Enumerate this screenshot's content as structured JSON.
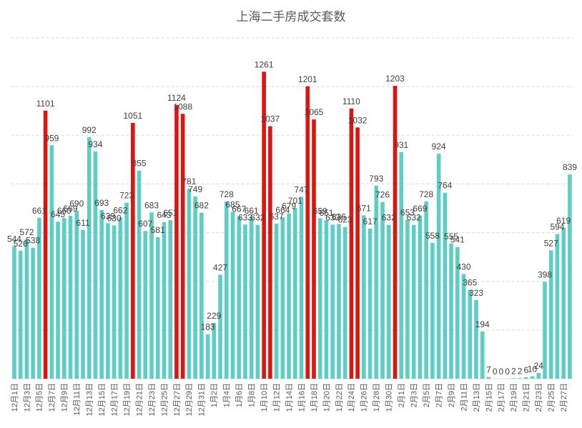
{
  "chart_data": {
    "type": "bar",
    "title": "上海二手房成交套数",
    "xlabel": "",
    "ylabel": "",
    "x_tick_labels": [
      "12月1日",
      "12月3日",
      "12月5日",
      "12月7日",
      "12月9日",
      "12月11日",
      "12月13日",
      "12月15日",
      "12月17日",
      "12月19日",
      "12月21日",
      "12月23日",
      "12月25日",
      "12月27日",
      "12月29日",
      "12月31日",
      "1月2日",
      "1月4日",
      "1月6日",
      "1月8日",
      "1月10日",
      "1月12日",
      "1月14日",
      "1月16日",
      "1月18日",
      "1月20日",
      "1月22日",
      "1月24日",
      "1月26日",
      "1月28日",
      "1月30日",
      "2月1日",
      "2月3日",
      "2月5日",
      "2月7日",
      "2月9日",
      "2月11日",
      "2月13日",
      "2月15日",
      "2月17日",
      "2月19日",
      "2月21日",
      "2月23日",
      "2月25日",
      "2月27日"
    ],
    "values": [
      544,
      526,
      572,
      538,
      661,
      1101,
      959,
      645,
      660,
      669,
      690,
      611,
      992,
      934,
      693,
      639,
      630,
      662,
      723,
      1051,
      855,
      607,
      683,
      581,
      643,
      651,
      1124,
      1088,
      781,
      749,
      682,
      183,
      229,
      427,
      728,
      685,
      667,
      633,
      661,
      632,
      1261,
      1037,
      637,
      664,
      679,
      701,
      747,
      1201,
      1065,
      659,
      651,
      633,
      636,
      623,
      1110,
      1032,
      671,
      617,
      793,
      726,
      632,
      1203,
      931,
      653,
      632,
      669,
      728,
      558,
      924,
      764,
      555,
      541,
      430,
      365,
      323,
      194,
      7,
      0,
      0,
      0,
      2,
      2,
      6,
      10,
      24,
      398,
      527,
      594,
      619,
      839
    ],
    "highlight_indices": [
      5,
      19,
      26,
      27,
      40,
      41,
      47,
      48,
      54,
      55,
      61
    ],
    "ylim": [
      0,
      1400
    ],
    "grid": true,
    "bar_color": "#5DCEC3",
    "highlight_color": "#E0140F"
  }
}
